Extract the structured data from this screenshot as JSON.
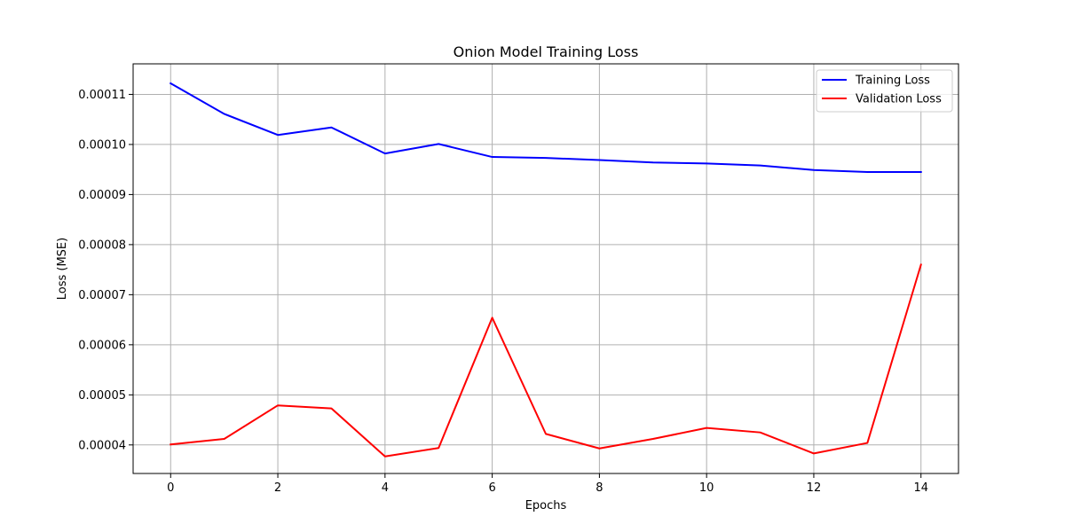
{
  "chart_data": {
    "type": "line",
    "title": "Onion Model Training Loss",
    "xlabel": "Epochs",
    "ylabel": "Loss (MSE)",
    "xlim": [
      -0.7,
      14.7
    ],
    "ylim": [
      3.43e-05,
      0.0001161
    ],
    "xticks": [
      0,
      2,
      4,
      6,
      8,
      10,
      12,
      14
    ],
    "xtick_labels": [
      "0",
      "2",
      "4",
      "6",
      "8",
      "10",
      "12",
      "14"
    ],
    "yticks": [
      4e-05,
      5e-05,
      6e-05,
      7e-05,
      8e-05,
      9e-05,
      0.0001,
      0.00011
    ],
    "ytick_labels": [
      "0.00004",
      "0.00005",
      "0.00006",
      "0.00007",
      "0.00008",
      "0.00009",
      "0.00010",
      "0.00011"
    ],
    "grid": true,
    "legend_position": "top-right",
    "x": [
      0,
      1,
      2,
      3,
      4,
      5,
      6,
      7,
      8,
      9,
      10,
      11,
      12,
      13,
      14
    ],
    "series": [
      {
        "name": "Training Loss",
        "color": "#0000ff",
        "values": [
          0.0001122,
          0.0001061,
          0.0001019,
          0.0001034,
          9.82e-05,
          0.0001001,
          9.75e-05,
          9.73e-05,
          9.69e-05,
          9.64e-05,
          9.62e-05,
          9.58e-05,
          9.49e-05,
          9.45e-05,
          9.45e-05
        ]
      },
      {
        "name": "Validation Loss",
        "color": "#ff0000",
        "values": [
          4.01e-05,
          4.12e-05,
          4.79e-05,
          4.73e-05,
          3.77e-05,
          3.94e-05,
          6.54e-05,
          4.22e-05,
          3.93e-05,
          4.12e-05,
          4.34e-05,
          4.25e-05,
          3.83e-05,
          4.04e-05,
          7.6e-05
        ]
      }
    ]
  }
}
